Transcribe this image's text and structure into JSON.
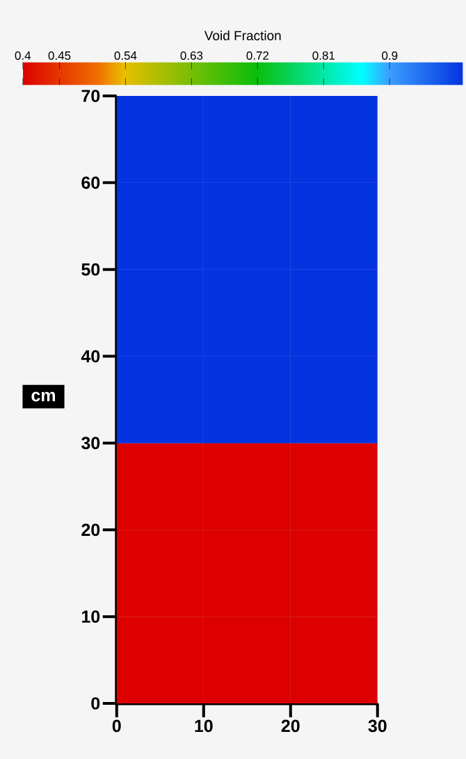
{
  "chart_data": {
    "type": "heatmap",
    "clabel": "Void Fraction",
    "ylabel": "cm",
    "cells": [
      [
        1.0,
        1.0,
        1.0
      ],
      [
        1.0,
        1.0,
        1.0
      ],
      [
        1.0,
        1.0,
        1.0
      ],
      [
        1.0,
        1.0,
        1.0
      ],
      [
        0.4,
        0.4,
        0.4
      ],
      [
        0.4,
        0.4,
        0.4
      ],
      [
        0.4,
        0.4,
        0.4
      ]
    ],
    "clim": [
      0.4,
      1.0
    ],
    "cticks": [
      0.4,
      0.45,
      0.54,
      0.63,
      0.72,
      0.81,
      0.9
    ],
    "xlim": [
      0,
      30
    ],
    "ylim": [
      0,
      70
    ],
    "xticks": [
      0,
      10,
      20,
      30
    ],
    "yticks": [
      0,
      10,
      20,
      30,
      40,
      50,
      60,
      70
    ]
  }
}
